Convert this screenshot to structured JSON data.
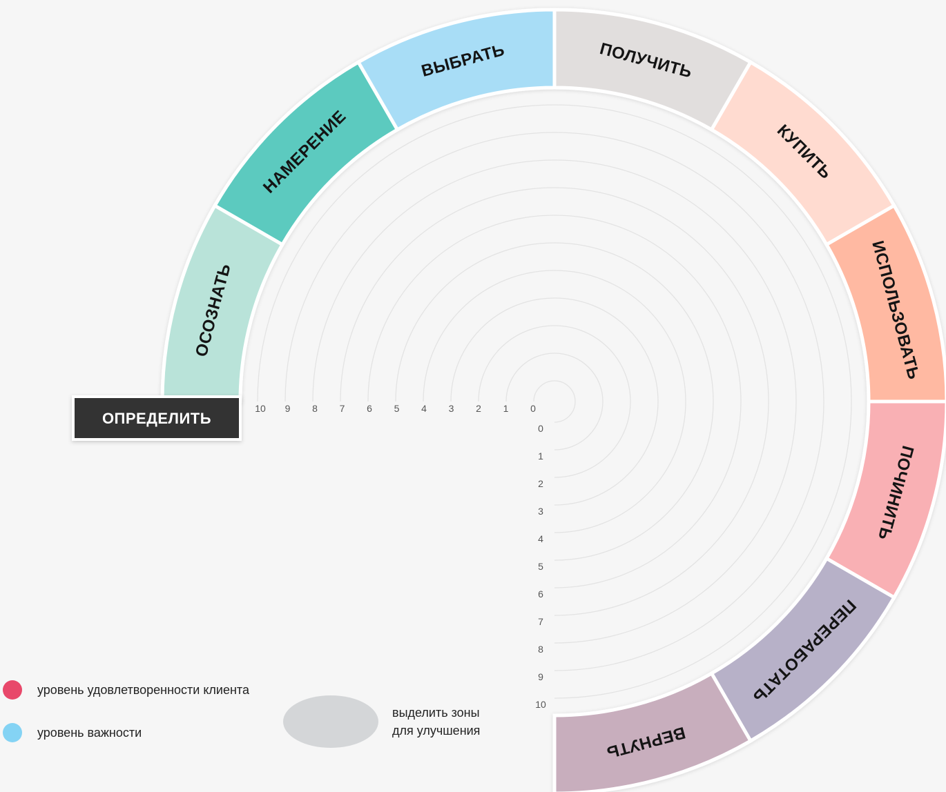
{
  "define": {
    "label": "ОПРЕДЕЛИТЬ",
    "color": "#333333"
  },
  "segments": [
    {
      "label": "ОСОЗНАТЬ",
      "color": "#b9e3d9"
    },
    {
      "label": "НАМЕРЕНИЕ",
      "color": "#5ccabf"
    },
    {
      "label": "ВЫБРАТЬ",
      "color": "#a8ddf6"
    },
    {
      "label": "ПОЛУЧИТЬ",
      "color": "#e1dedd"
    },
    {
      "label": "КУПИТЬ",
      "color": "#ffdbd0"
    },
    {
      "label": "ИСПОЛЬЗОВАТЬ",
      "color": "#ffb9a2"
    },
    {
      "label": "ПОЧИНИТЬ",
      "color": "#f9b0b4"
    },
    {
      "label": "ПЕРЕРАБОТАТЬ",
      "color": "#b7b1c8"
    },
    {
      "label": "ВЕРНУТЬ",
      "color": "#c8aebd"
    }
  ],
  "horizontal_scale": [
    "10",
    "9",
    "8",
    "7",
    "6",
    "5",
    "4",
    "3",
    "2",
    "1",
    "0"
  ],
  "vertical_scale": [
    "0",
    "1",
    "2",
    "3",
    "4",
    "5",
    "6",
    "7",
    "8",
    "9",
    "10"
  ],
  "legend": {
    "satisfaction": {
      "label": "уровень удовлетворенности клиента",
      "color": "#e8486a"
    },
    "importance": {
      "label": "уровень важности",
      "color": "#84d3f4"
    },
    "zones": {
      "line1": "выделить зоны",
      "line2": "для улучшения",
      "color": "#d4d6d8"
    }
  }
}
